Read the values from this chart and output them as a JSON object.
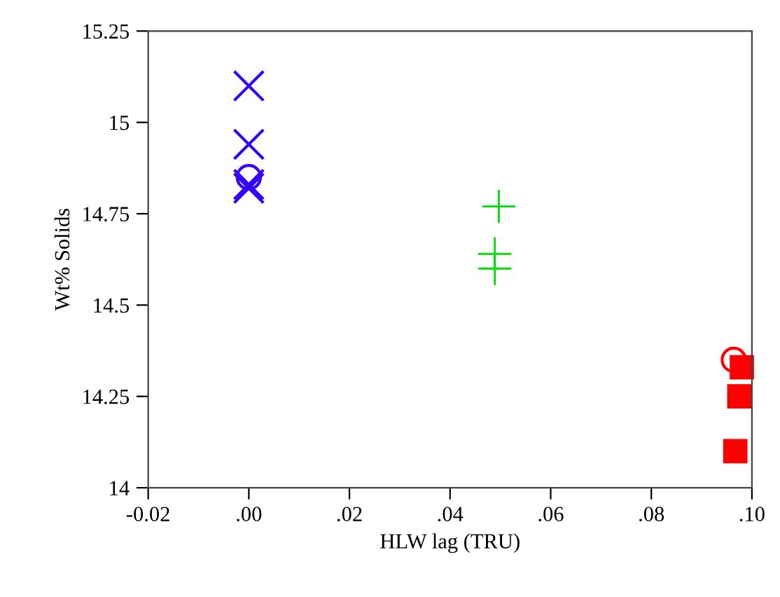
{
  "chart_data": {
    "type": "scatter",
    "xlabel": "HLW lag (TRU)",
    "ylabel": "Wt% Solids",
    "xlim": [
      -0.02,
      0.1
    ],
    "xticks": [
      {
        "value": -0.02,
        "label": "-0.02"
      },
      {
        "value": 0.0,
        "label": ".00"
      },
      {
        "value": 0.02,
        "label": ".02"
      },
      {
        "value": 0.04,
        "label": ".04"
      },
      {
        "value": 0.06,
        "label": ".06"
      },
      {
        "value": 0.08,
        "label": ".08"
      },
      {
        "value": 0.1,
        "label": ".10"
      }
    ],
    "ylim": [
      14,
      15.25
    ],
    "yticks": [
      14,
      14.25,
      14.5,
      14.75,
      15,
      15.25
    ],
    "grid": false,
    "series": [
      {
        "color": "#3300ff",
        "marker": "cross",
        "x": [
          0.0,
          0.0,
          0.0,
          0.0
        ],
        "values": [
          15.1,
          14.94,
          14.83,
          14.82
        ]
      },
      {
        "color": "#3300ff",
        "marker": "circle",
        "x": [
          0.0
        ],
        "values": [
          14.85
        ]
      },
      {
        "color": "#00dd00",
        "x": [
          0.0497,
          0.0489,
          0.0489
        ],
        "values": [
          14.77,
          14.64,
          14.6
        ]
      },
      {
        "color": "#ff0000",
        "marker": "square",
        "x": [
          0.098,
          0.0975,
          0.0967
        ],
        "values": [
          14.33,
          14.25,
          14.1
        ]
      },
      {
        "color": "#ff0000",
        "marker": "circle",
        "x": [
          0.0964
        ],
        "values": [
          14.35
        ]
      }
    ]
  }
}
